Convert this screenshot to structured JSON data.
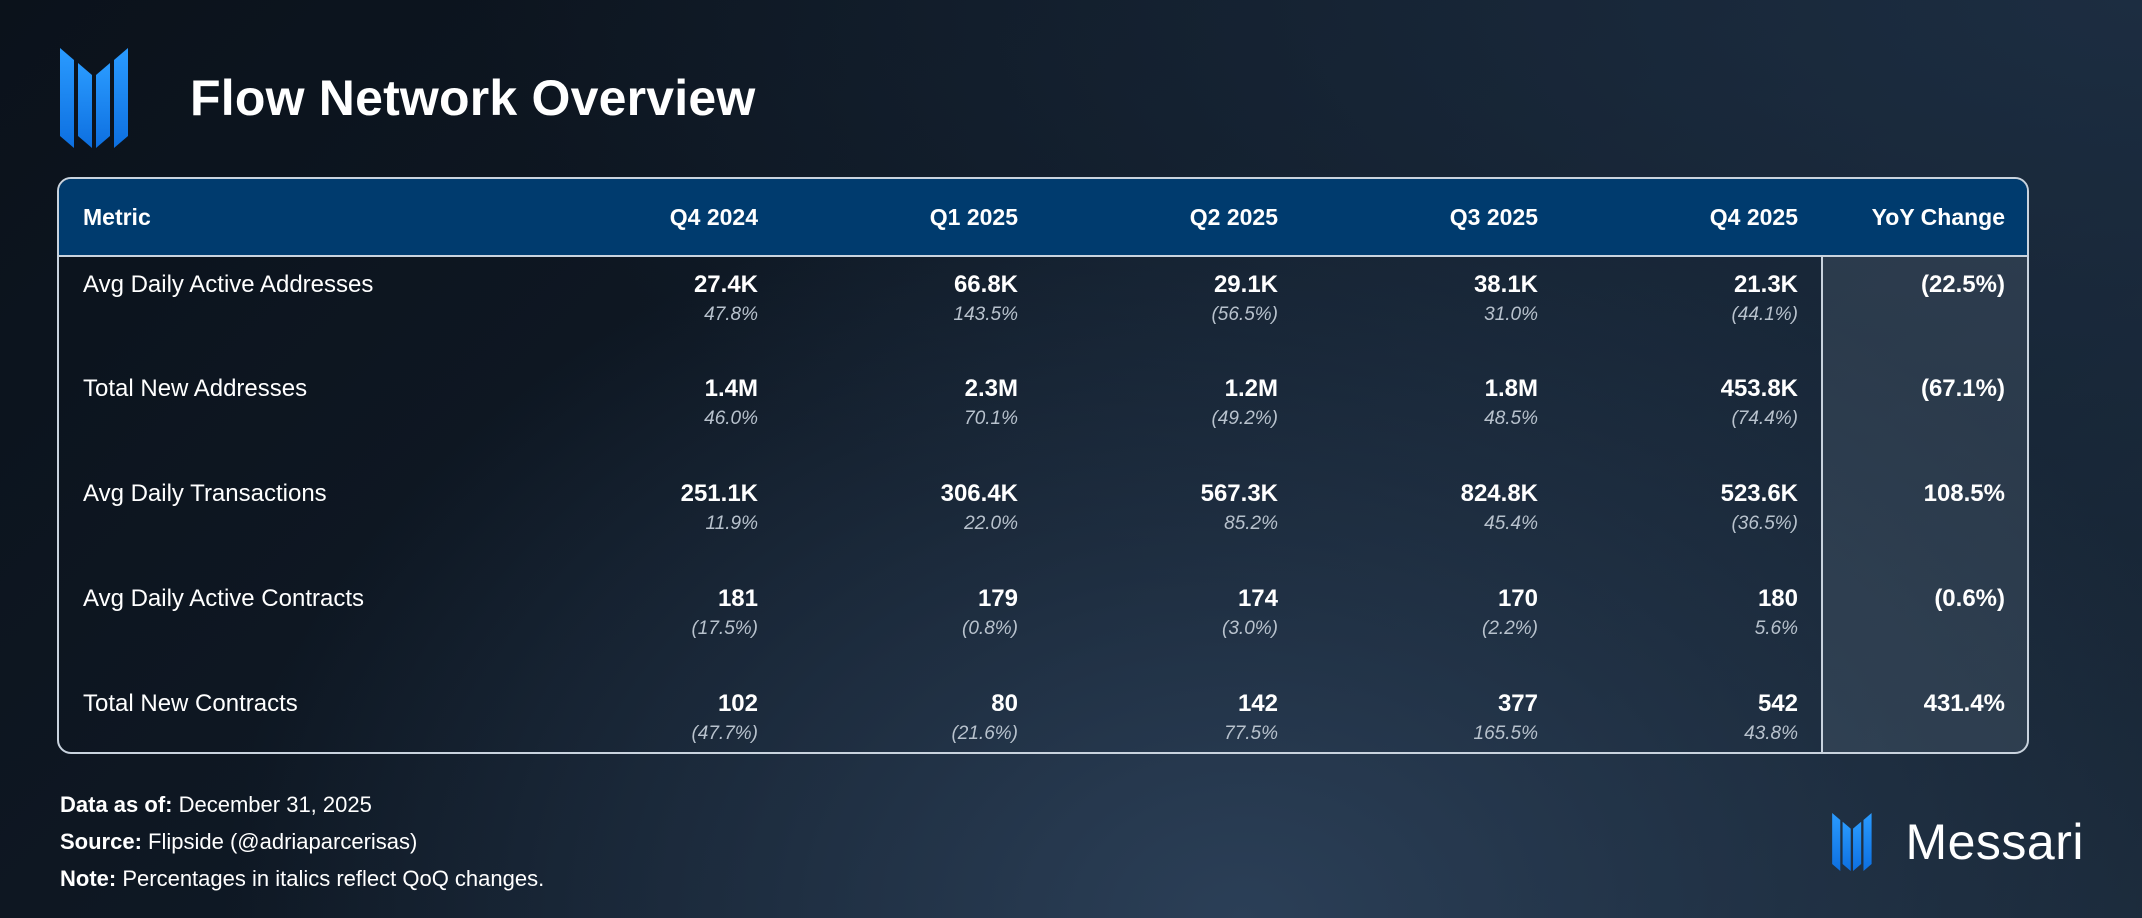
{
  "header": {
    "title": "Flow Network Overview",
    "logo_icon": "messari-m-logo-icon"
  },
  "colors": {
    "header_bg": "#003b6e",
    "accent_blue": "#1e8fff",
    "border": "#c9d3de"
  },
  "chart_data": {
    "type": "table",
    "title": "Flow Network Overview",
    "columns": [
      "Metric",
      "Q4 2024",
      "Q1 2025",
      "Q2 2025",
      "Q3 2025",
      "Q4 2025",
      "YoY Change"
    ],
    "rows": [
      {
        "metric": "Avg Daily Active Addresses",
        "cells": [
          {
            "value": "27.4K",
            "change": "47.8%"
          },
          {
            "value": "66.8K",
            "change": "143.5%"
          },
          {
            "value": "29.1K",
            "change": "(56.5%)"
          },
          {
            "value": "38.1K",
            "change": "31.0%"
          },
          {
            "value": "21.3K",
            "change": "(44.1%)"
          }
        ],
        "yoy": "(22.5%)"
      },
      {
        "metric": "Total New Addresses",
        "cells": [
          {
            "value": "1.4M",
            "change": "46.0%"
          },
          {
            "value": "2.3M",
            "change": "70.1%"
          },
          {
            "value": "1.2M",
            "change": "(49.2%)"
          },
          {
            "value": "1.8M",
            "change": "48.5%"
          },
          {
            "value": "453.8K",
            "change": "(74.4%)"
          }
        ],
        "yoy": "(67.1%)"
      },
      {
        "metric": "Avg Daily Transactions",
        "cells": [
          {
            "value": "251.1K",
            "change": "11.9%"
          },
          {
            "value": "306.4K",
            "change": "22.0%"
          },
          {
            "value": "567.3K",
            "change": "85.2%"
          },
          {
            "value": "824.8K",
            "change": "45.4%"
          },
          {
            "value": "523.6K",
            "change": "(36.5%)"
          }
        ],
        "yoy": "108.5%"
      },
      {
        "metric": "Avg Daily Active Contracts",
        "cells": [
          {
            "value": "181",
            "change": "(17.5%)"
          },
          {
            "value": "179",
            "change": "(0.8%)"
          },
          {
            "value": "174",
            "change": "(3.0%)"
          },
          {
            "value": "170",
            "change": "(2.2%)"
          },
          {
            "value": "180",
            "change": "5.6%"
          }
        ],
        "yoy": "(0.6%)"
      },
      {
        "metric": "Total New Contracts",
        "cells": [
          {
            "value": "102",
            "change": "(47.7%)"
          },
          {
            "value": "80",
            "change": "(21.6%)"
          },
          {
            "value": "142",
            "change": "77.5%"
          },
          {
            "value": "377",
            "change": "165.5%"
          },
          {
            "value": "542",
            "change": "43.8%"
          }
        ],
        "yoy": "431.4%"
      }
    ]
  },
  "footer": {
    "data_as_of_label": "Data as of:",
    "data_as_of_value": "December 31, 2025",
    "source_label": "Source:",
    "source_value": "Flipside (@adriaparcerisas)",
    "note_label": "Note:",
    "note_value": "Percentages in italics reflect QoQ changes."
  },
  "brand": {
    "name": "Messari",
    "logo_icon": "messari-m-logo-icon"
  }
}
